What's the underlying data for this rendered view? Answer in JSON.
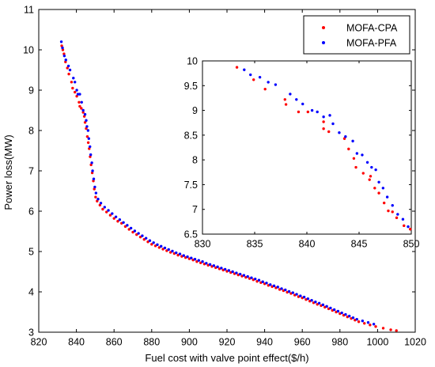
{
  "chart_data": {
    "type": "scatter",
    "xlabel": "Fuel cost with valve point effect($/h)",
    "ylabel": "Power loss(MW)",
    "xlim": [
      820,
      1020
    ],
    "ylim": [
      3,
      11
    ],
    "xticks": [
      820,
      840,
      860,
      880,
      900,
      920,
      940,
      960,
      980,
      1000,
      1020
    ],
    "yticks": [
      3,
      4,
      5,
      6,
      7,
      8,
      9,
      10,
      11
    ],
    "legend": {
      "placement": "top-right"
    },
    "series": [
      {
        "name": "MOFA-CPA",
        "color": "#ff0000",
        "points": [
          [
            832.2,
            10.1
          ],
          [
            832.8,
            10.0
          ],
          [
            833.4,
            9.9
          ],
          [
            834.2,
            9.7
          ],
          [
            835.2,
            9.55
          ],
          [
            836.0,
            9.4
          ],
          [
            837.4,
            9.2
          ],
          [
            838.0,
            9.05
          ],
          [
            839.2,
            8.95
          ],
          [
            840.2,
            8.85
          ],
          [
            841.4,
            8.7
          ],
          [
            841.8,
            8.6
          ],
          [
            842.6,
            8.55
          ],
          [
            843.6,
            8.45
          ],
          [
            844.2,
            8.35
          ],
          [
            844.6,
            8.2
          ],
          [
            845.2,
            8.05
          ],
          [
            845.8,
            7.85
          ],
          [
            846.3,
            7.7
          ],
          [
            846.8,
            7.55
          ],
          [
            847.3,
            7.35
          ],
          [
            847.8,
            7.15
          ],
          [
            848.4,
            6.95
          ],
          [
            849.0,
            6.75
          ],
          [
            849.5,
            6.55
          ],
          [
            850.2,
            6.35
          ],
          [
            851.0,
            6.25
          ],
          [
            852.5,
            6.15
          ],
          [
            854.0,
            6.05
          ],
          [
            856.0,
            5.98
          ],
          [
            858.0,
            5.9
          ],
          [
            860.0,
            5.82
          ],
          [
            862.0,
            5.75
          ],
          [
            864.0,
            5.7
          ],
          [
            866.0,
            5.62
          ],
          [
            868.0,
            5.55
          ],
          [
            870.0,
            5.48
          ],
          [
            872.0,
            5.42
          ],
          [
            874.0,
            5.36
          ],
          [
            876.0,
            5.3
          ],
          [
            878.0,
            5.24
          ],
          [
            880.0,
            5.18
          ],
          [
            882.0,
            5.14
          ],
          [
            884.0,
            5.1
          ],
          [
            886.0,
            5.06
          ],
          [
            888.0,
            5.02
          ],
          [
            890.0,
            4.98
          ],
          [
            892.0,
            4.95
          ],
          [
            894.0,
            4.91
          ],
          [
            896.0,
            4.88
          ],
          [
            898.0,
            4.85
          ],
          [
            900.0,
            4.82
          ],
          [
            902.0,
            4.79
          ],
          [
            904.0,
            4.75
          ],
          [
            906.0,
            4.72
          ],
          [
            908.0,
            4.69
          ],
          [
            910.0,
            4.66
          ],
          [
            912.0,
            4.63
          ],
          [
            914.0,
            4.6
          ],
          [
            916.0,
            4.57
          ],
          [
            918.0,
            4.54
          ],
          [
            920.0,
            4.51
          ],
          [
            922.0,
            4.48
          ],
          [
            924.0,
            4.45
          ],
          [
            926.0,
            4.42
          ],
          [
            928.0,
            4.39
          ],
          [
            930.0,
            4.36
          ],
          [
            932.0,
            4.33
          ],
          [
            934.0,
            4.3
          ],
          [
            936.0,
            4.26
          ],
          [
            938.0,
            4.23
          ],
          [
            940.0,
            4.2
          ],
          [
            942.0,
            4.16
          ],
          [
            944.0,
            4.13
          ],
          [
            946.0,
            4.1
          ],
          [
            948.0,
            4.06
          ],
          [
            950.0,
            4.03
          ],
          [
            952.0,
            3.99
          ],
          [
            954.0,
            3.96
          ],
          [
            956.0,
            3.92
          ],
          [
            958.0,
            3.88
          ],
          [
            960.0,
            3.85
          ],
          [
            962.0,
            3.81
          ],
          [
            964.0,
            3.77
          ],
          [
            966.0,
            3.73
          ],
          [
            968.0,
            3.69
          ],
          [
            970.0,
            3.66
          ],
          [
            972.0,
            3.62
          ],
          [
            974.0,
            3.58
          ],
          [
            976.0,
            3.54
          ],
          [
            978.0,
            3.5
          ],
          [
            980.0,
            3.46
          ],
          [
            982.0,
            3.42
          ],
          [
            984.0,
            3.38
          ],
          [
            986.0,
            3.34
          ],
          [
            988.0,
            3.3
          ],
          [
            990.0,
            3.26
          ],
          [
            993.0,
            3.22
          ],
          [
            996.0,
            3.18
          ],
          [
            999.0,
            3.14
          ],
          [
            1003.0,
            3.1
          ],
          [
            1007.0,
            3.06
          ],
          [
            1010.0,
            3.04
          ]
        ]
      },
      {
        "name": "MOFA-PFA",
        "color": "#0000ff",
        "points": [
          [
            832.0,
            10.2
          ],
          [
            832.6,
            10.05
          ],
          [
            833.6,
            9.85
          ],
          [
            834.4,
            9.75
          ],
          [
            835.8,
            9.6
          ],
          [
            836.6,
            9.5
          ],
          [
            838.4,
            9.3
          ],
          [
            839.2,
            9.2
          ],
          [
            840.2,
            9.0
          ],
          [
            840.8,
            8.9
          ],
          [
            841.8,
            8.9
          ],
          [
            842.8,
            8.7
          ],
          [
            843.6,
            8.5
          ],
          [
            844.6,
            8.4
          ],
          [
            845.2,
            8.25
          ],
          [
            845.6,
            8.1
          ],
          [
            846.2,
            8.0
          ],
          [
            846.6,
            7.8
          ],
          [
            847.2,
            7.6
          ],
          [
            847.6,
            7.4
          ],
          [
            848.2,
            7.2
          ],
          [
            848.6,
            7.0
          ],
          [
            849.2,
            6.8
          ],
          [
            849.8,
            6.6
          ],
          [
            850.4,
            6.45
          ],
          [
            851.5,
            6.3
          ],
          [
            853.0,
            6.2
          ],
          [
            855.0,
            6.1
          ],
          [
            857.0,
            6.02
          ],
          [
            859.0,
            5.94
          ],
          [
            861.0,
            5.86
          ],
          [
            863.0,
            5.79
          ],
          [
            865.0,
            5.72
          ],
          [
            867.0,
            5.65
          ],
          [
            869.0,
            5.58
          ],
          [
            871.0,
            5.51
          ],
          [
            873.0,
            5.45
          ],
          [
            875.0,
            5.39
          ],
          [
            877.0,
            5.33
          ],
          [
            879.0,
            5.27
          ],
          [
            881.0,
            5.22
          ],
          [
            883.0,
            5.17
          ],
          [
            885.0,
            5.13
          ],
          [
            887.0,
            5.09
          ],
          [
            889.0,
            5.05
          ],
          [
            891.0,
            5.01
          ],
          [
            893.0,
            4.97
          ],
          [
            895.0,
            4.94
          ],
          [
            897.0,
            4.9
          ],
          [
            899.0,
            4.87
          ],
          [
            901.0,
            4.84
          ],
          [
            903.0,
            4.81
          ],
          [
            905.0,
            4.78
          ],
          [
            907.0,
            4.75
          ],
          [
            909.0,
            4.71
          ],
          [
            911.0,
            4.68
          ],
          [
            913.0,
            4.65
          ],
          [
            915.0,
            4.62
          ],
          [
            917.0,
            4.59
          ],
          [
            919.0,
            4.56
          ],
          [
            921.0,
            4.53
          ],
          [
            923.0,
            4.5
          ],
          [
            925.0,
            4.47
          ],
          [
            927.0,
            4.44
          ],
          [
            929.0,
            4.41
          ],
          [
            931.0,
            4.38
          ],
          [
            933.0,
            4.35
          ],
          [
            935.0,
            4.32
          ],
          [
            937.0,
            4.29
          ],
          [
            939.0,
            4.25
          ],
          [
            941.0,
            4.22
          ],
          [
            943.0,
            4.18
          ],
          [
            945.0,
            4.15
          ],
          [
            947.0,
            4.12
          ],
          [
            949.0,
            4.08
          ],
          [
            951.0,
            4.05
          ],
          [
            953.0,
            4.01
          ],
          [
            955.0,
            3.98
          ],
          [
            957.0,
            3.94
          ],
          [
            959.0,
            3.9
          ],
          [
            961.0,
            3.87
          ],
          [
            963.0,
            3.83
          ],
          [
            965.0,
            3.79
          ],
          [
            967.0,
            3.75
          ],
          [
            969.0,
            3.72
          ],
          [
            971.0,
            3.68
          ],
          [
            973.0,
            3.64
          ],
          [
            975.0,
            3.6
          ],
          [
            977.0,
            3.56
          ],
          [
            979.0,
            3.52
          ],
          [
            981.0,
            3.48
          ],
          [
            983.0,
            3.44
          ],
          [
            985.0,
            3.4
          ],
          [
            987.0,
            3.36
          ],
          [
            989.0,
            3.32
          ],
          [
            992.0,
            3.28
          ],
          [
            995.0,
            3.24
          ],
          [
            998.0,
            3.2
          ]
        ]
      }
    ],
    "inset": {
      "xlim": [
        830,
        850
      ],
      "ylim": [
        6.5,
        10
      ],
      "xticks": [
        830,
        835,
        840,
        845,
        850
      ],
      "yticks": [
        6.5,
        7,
        7.5,
        8,
        8.5,
        9,
        9.5,
        10
      ],
      "series": [
        {
          "name": "MOFA-CPA",
          "color": "#ff0000",
          "points": [
            [
              833.3,
              9.87
            ],
            [
              834.9,
              9.62
            ],
            [
              836.0,
              9.43
            ],
            [
              837.9,
              9.22
            ],
            [
              838.0,
              9.12
            ],
            [
              839.2,
              8.97
            ],
            [
              840.1,
              8.97
            ],
            [
              841.6,
              8.63
            ],
            [
              841.6,
              8.77
            ],
            [
              842.1,
              8.57
            ],
            [
              843.6,
              8.43
            ],
            [
              844.0,
              8.22
            ],
            [
              844.5,
              8.03
            ],
            [
              844.7,
              7.85
            ],
            [
              845.4,
              7.73
            ],
            [
              846.0,
              7.6
            ],
            [
              846.1,
              7.67
            ],
            [
              846.5,
              7.43
            ],
            [
              846.9,
              7.33
            ],
            [
              847.4,
              7.13
            ],
            [
              847.8,
              6.97
            ],
            [
              848.2,
              6.95
            ],
            [
              848.6,
              6.83
            ],
            [
              849.3,
              6.67
            ],
            [
              849.9,
              6.6
            ]
          ]
        },
        {
          "name": "MOFA-PFA",
          "color": "#0000ff",
          "points": [
            [
              834.0,
              9.82
            ],
            [
              834.6,
              9.72
            ],
            [
              835.5,
              9.67
            ],
            [
              836.3,
              9.57
            ],
            [
              837.0,
              9.52
            ],
            [
              838.4,
              9.33
            ],
            [
              839.0,
              9.22
            ],
            [
              839.6,
              9.13
            ],
            [
              840.5,
              9.0
            ],
            [
              841.0,
              8.97
            ],
            [
              841.6,
              8.87
            ],
            [
              842.2,
              8.9
            ],
            [
              842.5,
              8.73
            ],
            [
              843.1,
              8.55
            ],
            [
              843.7,
              8.47
            ],
            [
              844.4,
              8.38
            ],
            [
              844.8,
              8.13
            ],
            [
              845.3,
              8.1
            ],
            [
              845.8,
              7.95
            ],
            [
              846.2,
              7.85
            ],
            [
              846.6,
              7.8
            ],
            [
              846.9,
              7.55
            ],
            [
              847.3,
              7.43
            ],
            [
              847.7,
              7.25
            ],
            [
              848.2,
              7.08
            ],
            [
              848.7,
              6.9
            ],
            [
              849.2,
              6.8
            ],
            [
              849.7,
              6.65
            ]
          ]
        }
      ]
    }
  }
}
